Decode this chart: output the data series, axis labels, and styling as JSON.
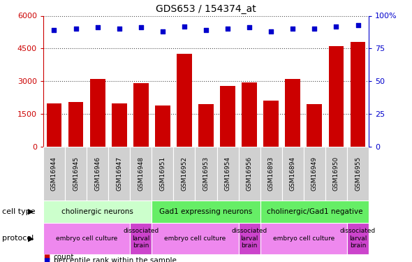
{
  "title": "GDS653 / 154374_at",
  "samples": [
    "GSM16944",
    "GSM16945",
    "GSM16946",
    "GSM16947",
    "GSM16948",
    "GSM16951",
    "GSM16952",
    "GSM16953",
    "GSM16954",
    "GSM16956",
    "GSM16893",
    "GSM16894",
    "GSM16949",
    "GSM16950",
    "GSM16955"
  ],
  "counts": [
    2000,
    2050,
    3100,
    2000,
    2900,
    1900,
    4250,
    1950,
    2800,
    2950,
    2100,
    3100,
    1950,
    4600,
    4800
  ],
  "percentile": [
    89,
    90,
    91,
    90,
    91,
    88,
    92,
    89,
    90,
    91,
    88,
    90,
    90,
    92,
    93
  ],
  "bar_color": "#cc0000",
  "dot_color": "#0000cc",
  "ylim_left": [
    0,
    6000
  ],
  "ylim_right": [
    0,
    100
  ],
  "yticks_left": [
    0,
    1500,
    3000,
    4500,
    6000
  ],
  "ytick_labels_left": [
    "0",
    "1500",
    "3000",
    "4500",
    "6000"
  ],
  "yticks_right": [
    0,
    25,
    50,
    75,
    100
  ],
  "ytick_labels_right": [
    "0",
    "25",
    "50",
    "75",
    "100%"
  ],
  "cell_type_groups": [
    {
      "label": "cholinergic neurons",
      "start": 0,
      "end": 4,
      "color": "#ccffcc"
    },
    {
      "label": "Gad1 expressing neurons",
      "start": 5,
      "end": 9,
      "color": "#66ee66"
    },
    {
      "label": "cholinergic/Gad1 negative",
      "start": 10,
      "end": 14,
      "color": "#66ee66"
    }
  ],
  "protocol_groups": [
    {
      "label": "embryo cell culture",
      "start": 0,
      "end": 3,
      "color": "#ee88ee"
    },
    {
      "label": "dissociated\nlarval\nbrain",
      "start": 4,
      "end": 4,
      "color": "#cc44cc"
    },
    {
      "label": "embryo cell culture",
      "start": 5,
      "end": 8,
      "color": "#ee88ee"
    },
    {
      "label": "dissociated\nlarval\nbrain",
      "start": 9,
      "end": 9,
      "color": "#cc44cc"
    },
    {
      "label": "embryo cell culture",
      "start": 10,
      "end": 13,
      "color": "#ee88ee"
    },
    {
      "label": "dissociated\nlarval\nbrain",
      "start": 14,
      "end": 14,
      "color": "#cc44cc"
    }
  ],
  "legend_items": [
    {
      "label": "count",
      "color": "#cc0000"
    },
    {
      "label": "percentile rank within the sample",
      "color": "#0000cc"
    }
  ],
  "cell_type_label": "cell type",
  "protocol_label": "protocol",
  "tick_label_bg": "#d0d0d0"
}
